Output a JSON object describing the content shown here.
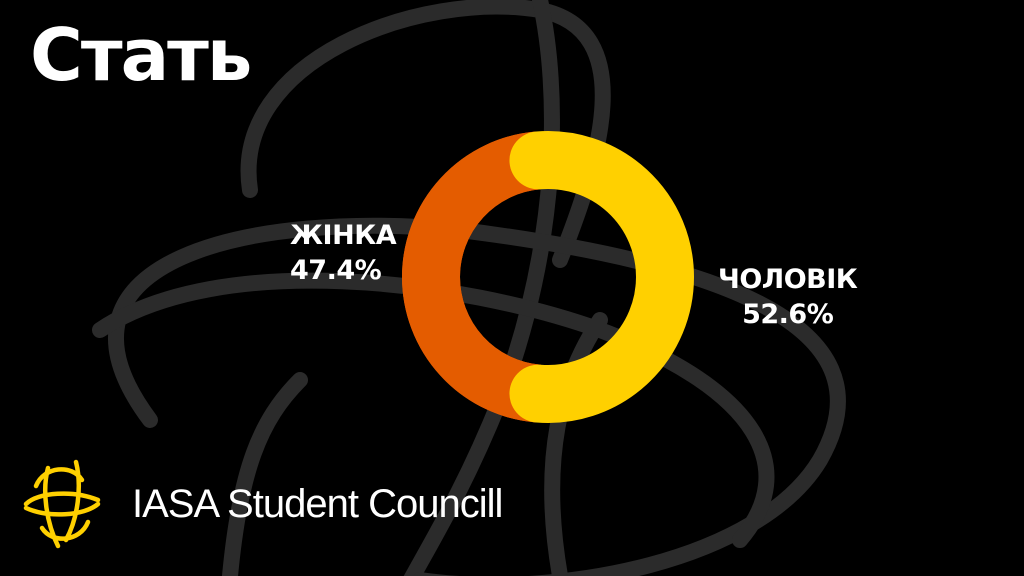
{
  "slide": {
    "title": "Стать",
    "brand_name": "IASA Student Councill"
  },
  "colors": {
    "background": "#000000",
    "female": "#E45C00",
    "male": "#FFD000",
    "text": "#FFFFFF",
    "watermark": "#3A3A3A"
  },
  "icons": {
    "brand_logo": "iasa-logo-icon"
  },
  "chart_data": {
    "type": "pie",
    "title": "Стать",
    "series": [
      {
        "name": "ЖІНКА",
        "value": 47.4,
        "value_label": "47.4%",
        "color": "#E45C00"
      },
      {
        "name": "ЧОЛОВІК",
        "value": 52.6,
        "value_label": "52.6%",
        "color": "#FFD000"
      }
    ]
  }
}
